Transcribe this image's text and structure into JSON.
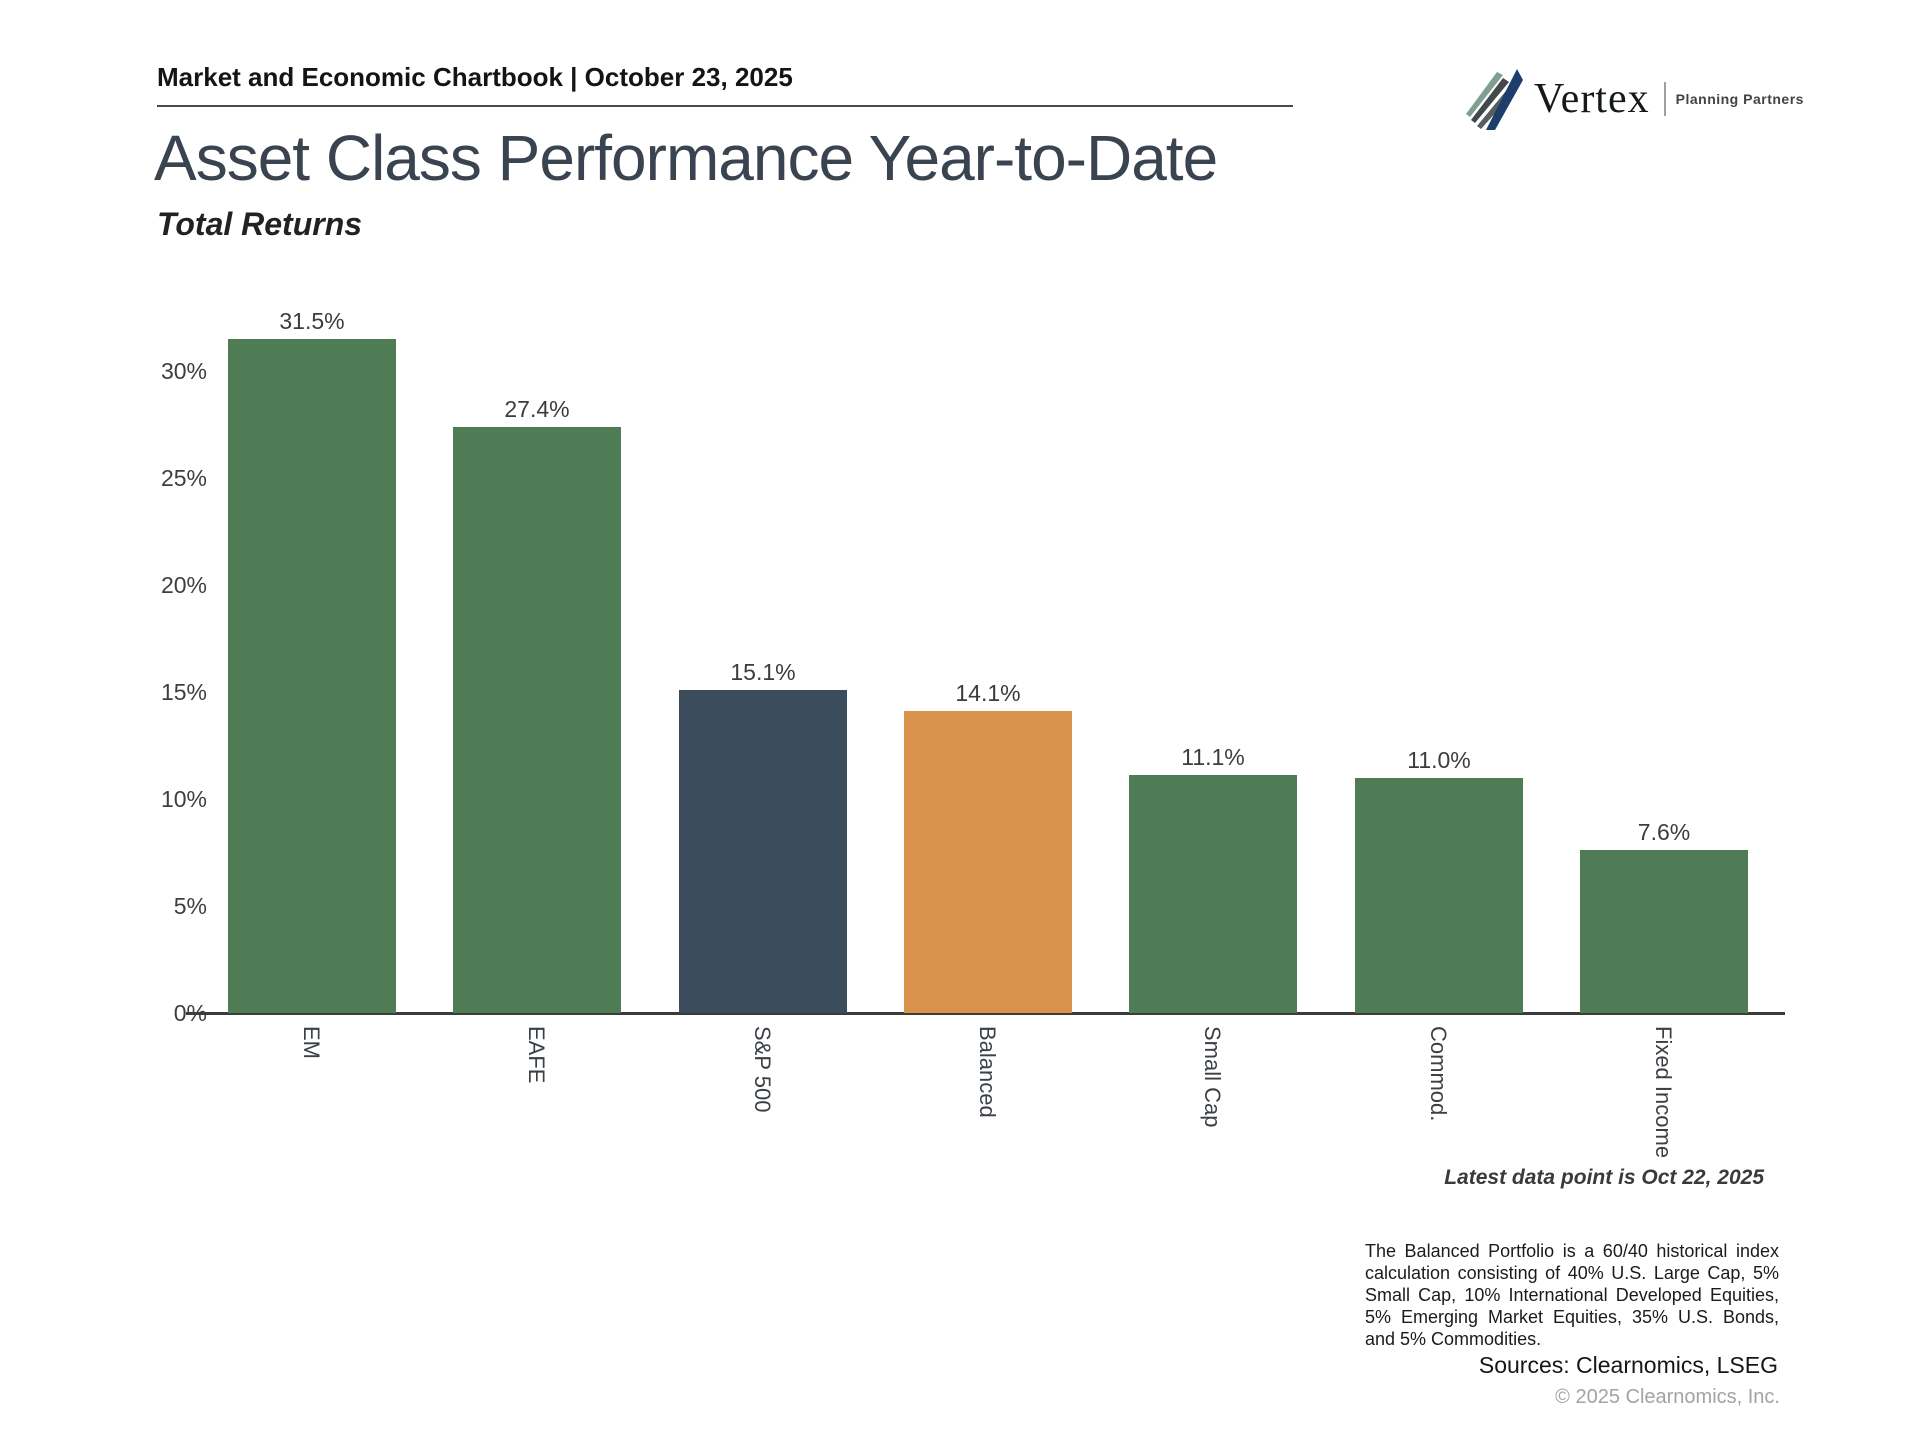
{
  "header": {
    "title": "Market and Economic Chartbook | October 23, 2025",
    "logo_brand": "Vertex",
    "logo_tagline": "Planning Partners"
  },
  "page": {
    "title": "Asset Class Performance Year-to-Date",
    "subtitle": "Total Returns"
  },
  "chart_data": {
    "type": "bar",
    "categories": [
      "EM",
      "EAFE",
      "S&P 500",
      "Balanced",
      "Small Cap",
      "Commod.",
      "Fixed Income"
    ],
    "values": [
      31.5,
      27.4,
      15.1,
      14.1,
      11.1,
      11.0,
      7.6
    ],
    "value_labels": [
      "31.5%",
      "27.4%",
      "15.1%",
      "14.1%",
      "11.1%",
      "11.0%",
      "7.6%"
    ],
    "bar_colors": [
      "#4f7b55",
      "#4f7b55",
      "#3b4c5c",
      "#d9924c",
      "#4f7b55",
      "#4f7b55",
      "#4f7b55"
    ],
    "title": "Asset Class Performance Year-to-Date",
    "subtitle": "Total Returns",
    "xlabel": "",
    "ylabel": "",
    "yticks": [
      0,
      5,
      10,
      15,
      20,
      25,
      30
    ],
    "ytick_labels": [
      "0%",
      "5%",
      "10%",
      "15%",
      "20%",
      "25%",
      "30%"
    ],
    "ylim": [
      0,
      34
    ],
    "grid": false,
    "legend": null
  },
  "annotations": {
    "latest_note": "Latest data point is Oct 22, 2025"
  },
  "footer": {
    "footnote": "The Balanced Portfolio is a 60/40 historical index calculation consisting of 40% U.S. Large Cap, 5% Small Cap, 10% International Developed Equities, 5% Emerging Market Equities, 35% U.S. Bonds, and 5% Commodities.",
    "sources": "Sources: Clearnomics, LSEG",
    "copyright": "© 2025 Clearnomics, Inc."
  },
  "colors": {
    "bar_green": "#4f7b55",
    "bar_navy": "#3b4c5c",
    "bar_orange": "#d9924c",
    "title_text": "#3a4450",
    "axis": "#3b3b3b",
    "logo_navy": "#1d3e6b",
    "logo_sage": "#7fa08f",
    "logo_charcoal": "#43484b",
    "logo_gray": "#585d5f"
  }
}
